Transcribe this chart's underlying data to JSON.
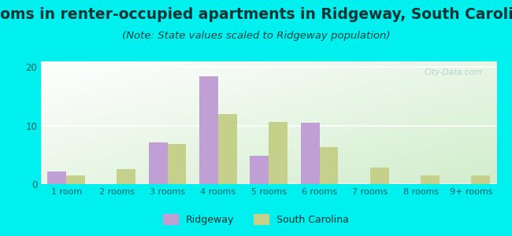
{
  "title": "Rooms in renter-occupied apartments in Ridgeway, South Carolina",
  "subtitle": "(Note: State values scaled to Ridgeway population)",
  "categories": [
    "1 room",
    "2 rooms",
    "3 rooms",
    "4 rooms",
    "5 rooms",
    "6 rooms",
    "7 rooms",
    "8 rooms",
    "9+ rooms"
  ],
  "ridgeway_values": [
    2.2,
    0,
    7.2,
    18.5,
    4.8,
    10.5,
    0,
    0,
    0
  ],
  "sc_values": [
    1.5,
    2.5,
    6.8,
    12.0,
    10.7,
    6.3,
    2.8,
    1.5,
    1.5
  ],
  "ridgeway_color": "#bf9fd4",
  "sc_color": "#c5d18a",
  "background_outer": "#00efef",
  "ylim": [
    0,
    21
  ],
  "yticks": [
    0,
    10,
    20
  ],
  "bar_width": 0.37,
  "title_fontsize": 13.5,
  "subtitle_fontsize": 9.5,
  "watermark": "City-Data.com"
}
